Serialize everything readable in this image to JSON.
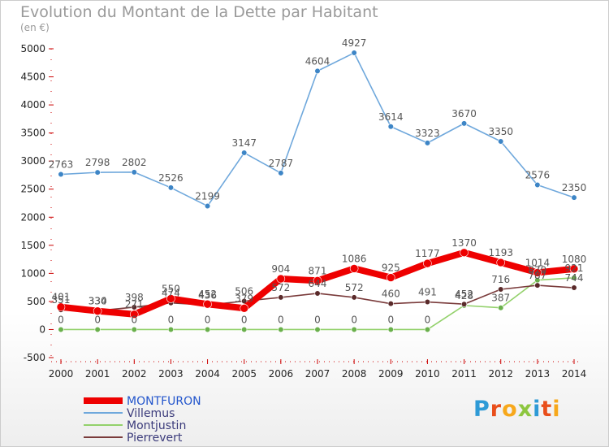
{
  "header": {
    "title": "Evolution du Montant de la Dette par Habitant",
    "subtitle": "(en €)"
  },
  "logo": {
    "text": "Proxiti",
    "colors": [
      "#2e9ad6",
      "#e94e1b",
      "#f7a81b",
      "#8dc63f"
    ]
  },
  "chart_data": {
    "type": "line",
    "title": "Evolution du Montant de la Dette par Habitant",
    "ylabel": "(en €)",
    "x": [
      "2000",
      "2001",
      "2002",
      "2003",
      "2004",
      "2005",
      "2006",
      "2007",
      "2008",
      "2009",
      "2010",
      "2011",
      "2012",
      "2013",
      "2014"
    ],
    "ylim": [
      -500,
      5000
    ],
    "yticks": [
      "-500",
      "0",
      "500",
      "1000",
      "1500",
      "2000",
      "2500",
      "3000",
      "3500",
      "4000",
      "4500",
      "5000"
    ],
    "grid": false,
    "legend_position": "bottom-left",
    "series": [
      {
        "name": "Villemus",
        "color": "#6fa8dc",
        "marker": "#3d85c6",
        "values": [
          2763,
          2798,
          2802,
          2526,
          2199,
          3147,
          2787,
          4604,
          4927,
          3614,
          3323,
          3670,
          3350,
          2576,
          2350
        ],
        "labels": [
          "2763",
          "2798",
          "2802",
          "2526",
          "2199",
          "3147",
          "2787",
          "4604",
          "4927",
          "3614",
          "3323",
          "3670",
          "3350",
          "2576",
          "2350"
        ]
      },
      {
        "name": "Montjustin",
        "color": "#93d16b",
        "marker": "#6ab04c",
        "values": [
          0,
          0,
          0,
          0,
          0,
          0,
          0,
          0,
          0,
          0,
          0,
          428,
          387,
          879,
          921
        ],
        "labels": [
          "0",
          "0",
          "0",
          "0",
          "0",
          "0",
          "0",
          "0",
          "0",
          "0",
          "0",
          "428",
          "387",
          "879",
          "921"
        ]
      },
      {
        "name": "Pierrevert",
        "color": "#7a3b3b",
        "marker": "#5a2a2a",
        "values": [
          351,
          334,
          398,
          474,
          436,
          506,
          572,
          644,
          572,
          460,
          491,
          452,
          716,
          787,
          744
        ],
        "labels": [
          "351",
          "334",
          "398",
          "474",
          "436",
          "506",
          "572",
          "644",
          "572",
          "460",
          "491",
          "452",
          "716",
          "787",
          "744"
        ]
      },
      {
        "name": "MONTFURON",
        "color": "#ee0000",
        "marker": "#ee0000",
        "values": [
          401,
          330,
          271,
          550,
          452,
          379,
          904,
          871,
          1086,
          925,
          1177,
          1370,
          1193,
          1014,
          1080
        ],
        "labels": [
          "401",
          "330",
          "271",
          "550",
          "452",
          "379",
          "904",
          "871",
          "1086",
          "925",
          "1177",
          "1370",
          "1193",
          "1014",
          "1080"
        ]
      }
    ]
  }
}
